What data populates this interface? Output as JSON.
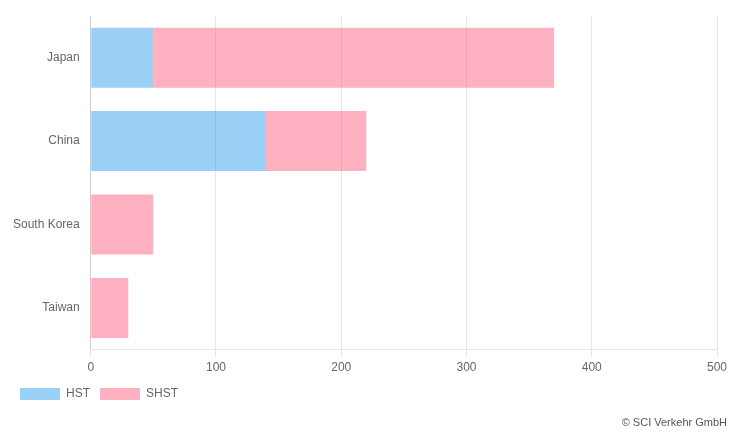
{
  "chart_data": {
    "type": "bar",
    "orientation": "horizontal",
    "stacked": true,
    "categories": [
      "Taiwan",
      "South Korea",
      "China",
      "Japan"
    ],
    "series": [
      {
        "name": "HST",
        "values": [
          0,
          0,
          140,
          50
        ]
      },
      {
        "name": "SHST",
        "values": [
          30,
          50,
          80,
          320
        ]
      }
    ],
    "xlim": [
      0,
      500
    ],
    "xticks": [
      0,
      100,
      200,
      300,
      400,
      500
    ],
    "grid": true,
    "legend": "bottom",
    "annotations": [
      "© SCI Verkehr GmbH"
    ]
  }
}
